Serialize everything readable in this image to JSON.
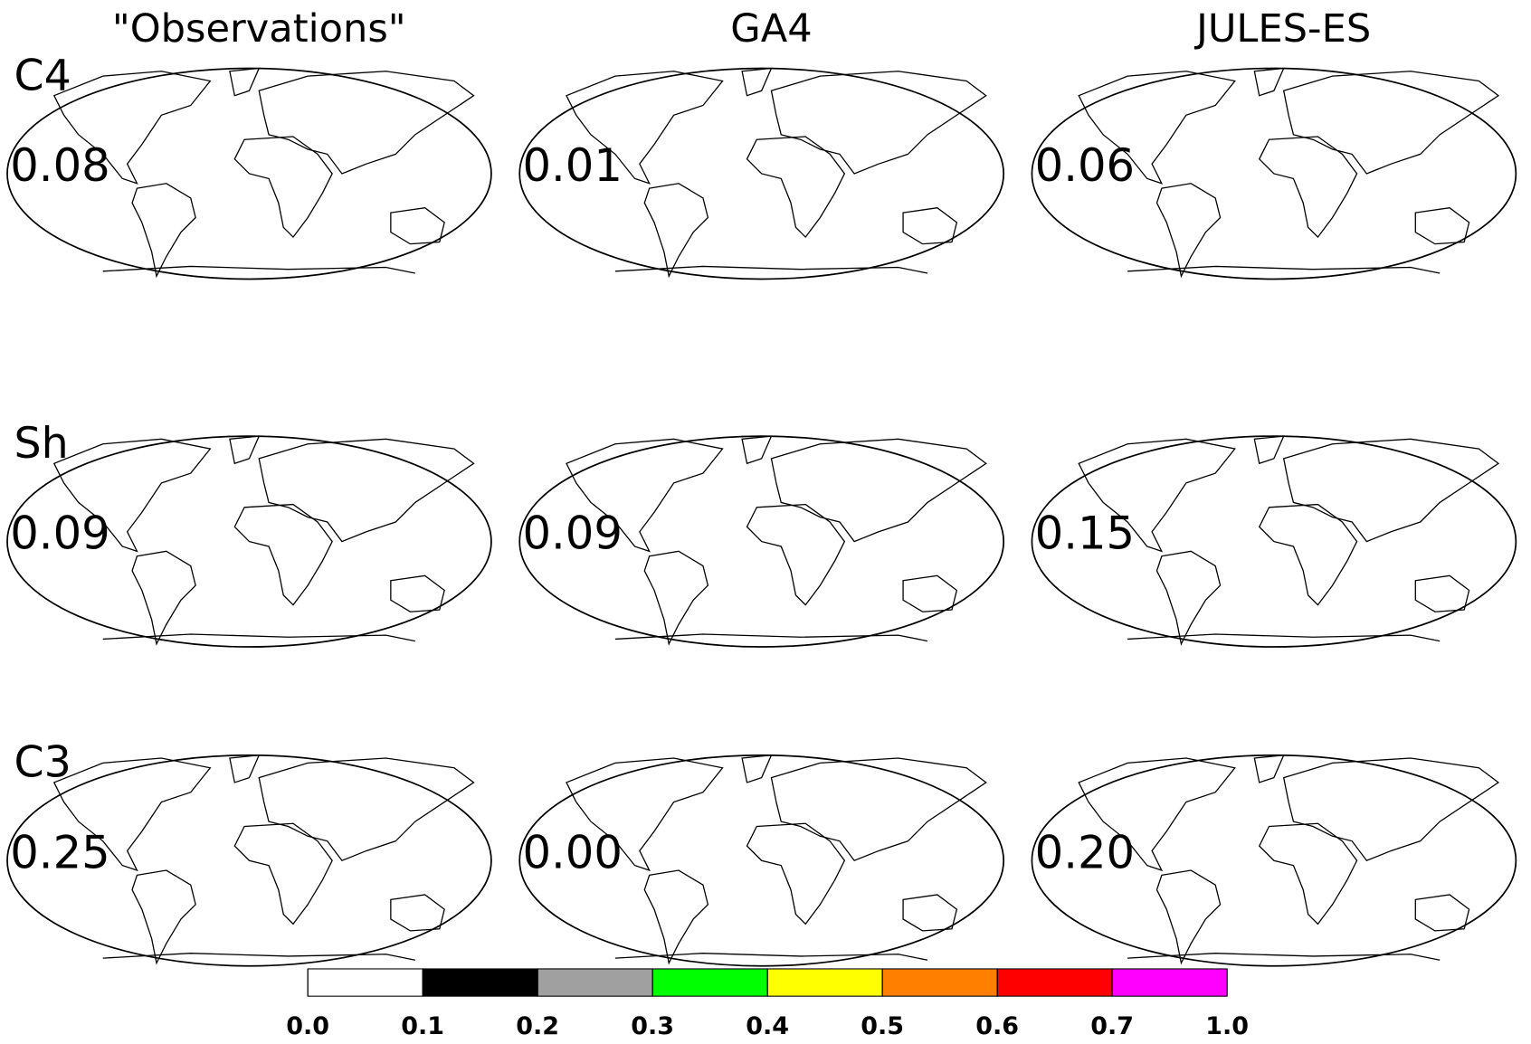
{
  "columns": [
    "\"Observations\"",
    "GA4",
    "JULES-ES"
  ],
  "rows": [
    {
      "label": "C4",
      "values": [
        0.08,
        0.01,
        0.06
      ]
    },
    {
      "label": "Sh",
      "values": [
        0.09,
        0.09,
        0.15
      ]
    },
    {
      "label": "C3",
      "values": [
        0.25,
        {
          "value": 0,
          "label": "0.00"
        },
        {
          "value": 0.2,
          "label": "0.20"
        }
      ]
    }
  ],
  "colorbar": {
    "ticks": [
      {
        "value": 0,
        "label": "0.0"
      },
      0.1,
      0.2,
      0.3,
      0.4,
      0.5,
      0.6,
      0.7,
      {
        "value": 1,
        "label": "1.0"
      }
    ],
    "colors": [
      "#ffffff",
      "#000000",
      "#a0a0a0",
      "#00ff00",
      "#ffff00",
      "#ff8000",
      "#ff0000",
      "#ff00ff"
    ]
  }
}
